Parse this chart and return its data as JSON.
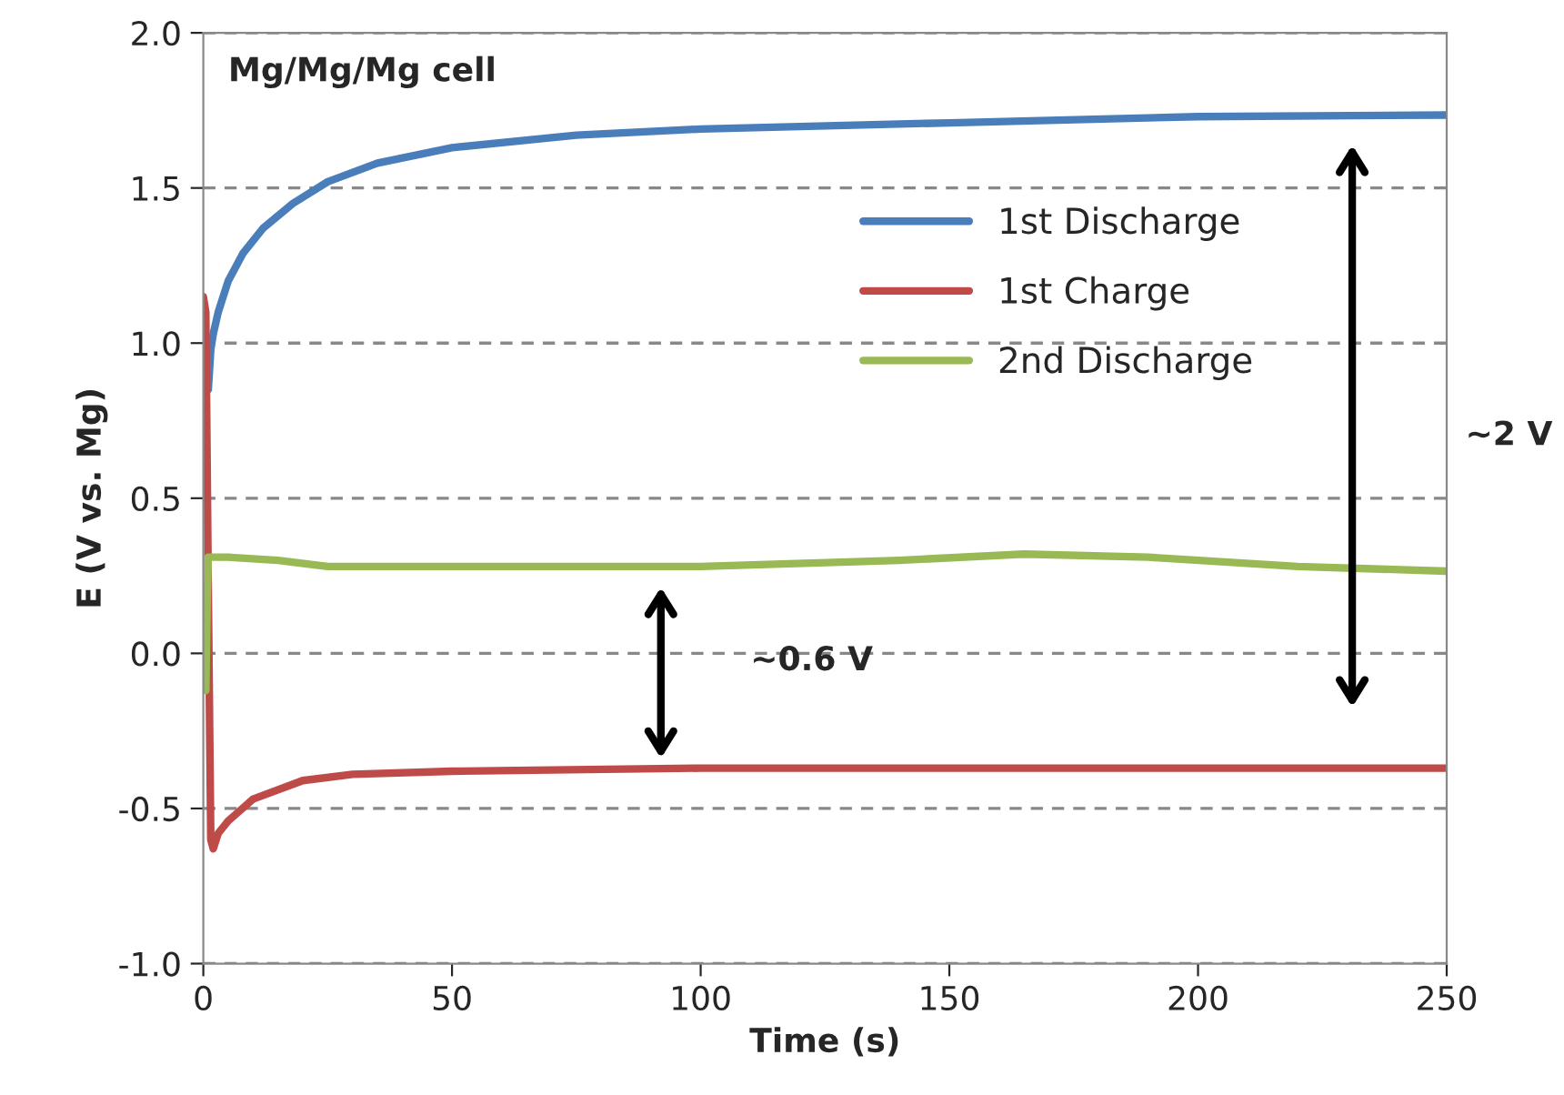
{
  "chart_data": {
    "type": "line",
    "title": "Mg/Mg/Mg cell",
    "xlabel": "Time (s)",
    "ylabel": "E (V vs. Mg)",
    "xlim": [
      0,
      250
    ],
    "xticks": [
      0,
      50,
      100,
      150,
      200,
      250
    ],
    "ylim": [
      -1.0,
      2.0
    ],
    "yticks": [
      {
        "value": -1.0,
        "label": "-1.0"
      },
      {
        "value": -0.5,
        "label": "-0.5"
      },
      {
        "value": 0.0,
        "label": "0.0"
      },
      {
        "value": 0.5,
        "label": "0.5"
      },
      {
        "value": 1.0,
        "label": "1.0"
      },
      {
        "value": 1.5,
        "label": "1.5"
      },
      {
        "value": 2.0,
        "label": "2.0"
      }
    ],
    "grid": "y",
    "legend": "right",
    "line_style": "solid",
    "marker": "none",
    "annotations": [
      "~0.6 V",
      "~2 V"
    ],
    "series": [
      {
        "name": "1st Discharge",
        "color": "#4a7ebb",
        "x": [
          1,
          1.5,
          2,
          3,
          5,
          8,
          12,
          18,
          25,
          35,
          50,
          75,
          100,
          150,
          200,
          250
        ],
        "values": [
          0.85,
          0.98,
          1.03,
          1.1,
          1.2,
          1.29,
          1.37,
          1.45,
          1.52,
          1.58,
          1.63,
          1.67,
          1.69,
          1.71,
          1.73,
          1.735
        ]
      },
      {
        "name": "1st Charge",
        "color": "#be4b48",
        "x": [
          0,
          0.5,
          1,
          1.5,
          2,
          3,
          5,
          10,
          20,
          30,
          50,
          100,
          150,
          200,
          250
        ],
        "values": [
          1.15,
          1.1,
          0.2,
          -0.6,
          -0.63,
          -0.58,
          -0.54,
          -0.47,
          -0.41,
          -0.39,
          -0.38,
          -0.37,
          -0.37,
          -0.37,
          -0.37
        ]
      },
      {
        "name": "2nd Discharge",
        "color": "#98b954",
        "x": [
          0.5,
          0.8,
          1,
          5,
          15,
          25,
          50,
          100,
          140,
          165,
          190,
          220,
          250
        ],
        "values": [
          -0.12,
          0.2,
          0.31,
          0.31,
          0.3,
          0.28,
          0.28,
          0.28,
          0.3,
          0.32,
          0.31,
          0.28,
          0.265
        ]
      }
    ]
  }
}
